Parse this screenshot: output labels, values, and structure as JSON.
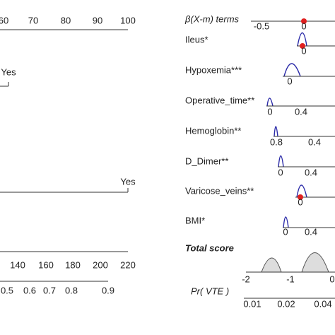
{
  "left": {
    "top_axis": [
      "60",
      "70",
      "80",
      "90",
      "100"
    ],
    "yes_labels": [
      "Yes",
      "Yes"
    ],
    "bottom_axis": [
      "140",
      "160",
      "180",
      "200",
      "220"
    ],
    "prob_axis": [
      "0.5",
      "0.6",
      "0.7",
      "0.8",
      "0.9"
    ]
  },
  "right": {
    "header": "β(X-m) terms",
    "header_axis": [
      "-0.5",
      "0"
    ],
    "rows": [
      {
        "label": "Ileus*",
        "ticks": [
          "0"
        ]
      },
      {
        "label": "Hypoxemia***",
        "ticks": [
          "0"
        ]
      },
      {
        "label": "Operative_time**",
        "ticks": [
          "0",
          "0.4"
        ]
      },
      {
        "label": "Hemoglobin**",
        "ticks": [
          "0.8",
          "0.4"
        ]
      },
      {
        "label": "D_Dimer**",
        "ticks": [
          "0",
          "0.4"
        ]
      },
      {
        "label": "Varicose_veins**",
        "ticks": [
          "0"
        ]
      },
      {
        "label": "BMI*",
        "ticks": [
          "0",
          "0.4"
        ]
      }
    ],
    "total_label": "Total score",
    "total_axis": [
      "-2",
      "-1",
      "0"
    ],
    "pr_label": "Pr( VTE )",
    "pr_axis": [
      "0.01",
      "0.02",
      "0.04"
    ]
  }
}
